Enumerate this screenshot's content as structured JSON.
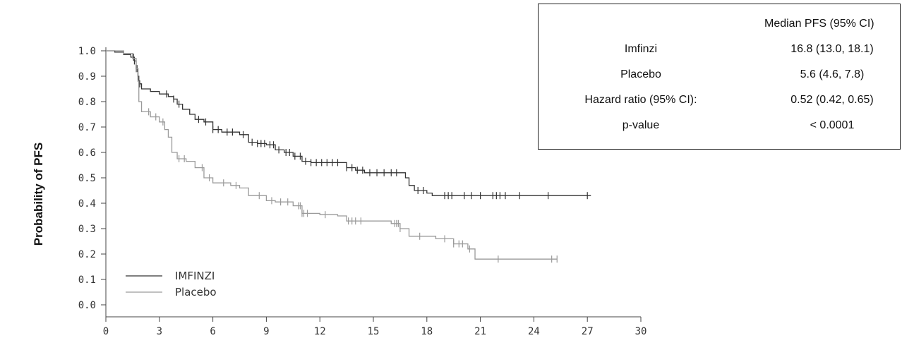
{
  "chart_data": {
    "type": "line",
    "subtype": "kaplan-meier",
    "xlabel": "",
    "ylabel": "Probability of PFS",
    "xlim": [
      0,
      30
    ],
    "ylim": [
      0,
      1
    ],
    "xticks": [
      "0",
      "3",
      "6",
      "9",
      "12",
      "15",
      "18",
      "21",
      "24",
      "27",
      "30"
    ],
    "yticks": [
      "0.0",
      "0.1",
      "0.2",
      "0.3",
      "0.4",
      "0.5",
      "0.6",
      "0.7",
      "0.8",
      "0.9",
      "1.0"
    ],
    "grid": false,
    "legend_position": "bottom-left",
    "series": [
      {
        "name": "IMFINZI",
        "color": "#333333",
        "points": [
          [
            0,
            1.0
          ],
          [
            0.5,
            0.995
          ],
          [
            1.0,
            0.985
          ],
          [
            1.4,
            0.975
          ],
          [
            1.6,
            0.96
          ],
          [
            1.7,
            0.93
          ],
          [
            1.8,
            0.9
          ],
          [
            1.85,
            0.87
          ],
          [
            2.0,
            0.85
          ],
          [
            2.5,
            0.84
          ],
          [
            3.0,
            0.83
          ],
          [
            3.5,
            0.82
          ],
          [
            3.8,
            0.81
          ],
          [
            4.0,
            0.79
          ],
          [
            4.3,
            0.77
          ],
          [
            4.7,
            0.75
          ],
          [
            5.0,
            0.73
          ],
          [
            5.5,
            0.72
          ],
          [
            6.0,
            0.69
          ],
          [
            6.5,
            0.68
          ],
          [
            7.0,
            0.68
          ],
          [
            7.5,
            0.67
          ],
          [
            8.0,
            0.64
          ],
          [
            8.5,
            0.635
          ],
          [
            9.0,
            0.63
          ],
          [
            9.5,
            0.61
          ],
          [
            10.0,
            0.6
          ],
          [
            10.5,
            0.585
          ],
          [
            11.0,
            0.565
          ],
          [
            11.5,
            0.56
          ],
          [
            12.0,
            0.56
          ],
          [
            13.0,
            0.56
          ],
          [
            13.5,
            0.54
          ],
          [
            14.0,
            0.53
          ],
          [
            14.5,
            0.52
          ],
          [
            15.5,
            0.52
          ],
          [
            16.5,
            0.52
          ],
          [
            16.8,
            0.5
          ],
          [
            17.0,
            0.47
          ],
          [
            17.3,
            0.45
          ],
          [
            18.0,
            0.44
          ],
          [
            18.3,
            0.43
          ],
          [
            20.0,
            0.43
          ],
          [
            22.0,
            0.43
          ],
          [
            25.0,
            0.43
          ],
          [
            27.2,
            0.43
          ]
        ],
        "censor_x": [
          1.55,
          1.6,
          1.7,
          1.75,
          1.8,
          1.85,
          1.9,
          3.4,
          3.8,
          4.1,
          5.2,
          5.6,
          6.0,
          6.3,
          6.8,
          7.1,
          7.7,
          8.2,
          8.5,
          8.7,
          8.9,
          9.2,
          9.4,
          9.7,
          10.1,
          10.3,
          10.6,
          10.9,
          11.2,
          11.5,
          11.8,
          12.1,
          12.4,
          12.7,
          13.0,
          13.5,
          13.8,
          14.1,
          14.4,
          14.8,
          15.2,
          15.6,
          16.0,
          16.3,
          17.5,
          17.8,
          19.0,
          19.2,
          19.4,
          20.1,
          20.5,
          21.0,
          21.7,
          21.9,
          22.1,
          22.4,
          23.2,
          24.8,
          27.0
        ]
      },
      {
        "name": "Placebo",
        "color": "#9a9a9a",
        "points": [
          [
            0,
            1.0
          ],
          [
            1.0,
            0.99
          ],
          [
            1.5,
            0.97
          ],
          [
            1.7,
            0.93
          ],
          [
            1.8,
            0.88
          ],
          [
            1.85,
            0.8
          ],
          [
            2.0,
            0.76
          ],
          [
            2.5,
            0.74
          ],
          [
            3.0,
            0.72
          ],
          [
            3.3,
            0.69
          ],
          [
            3.5,
            0.66
          ],
          [
            3.7,
            0.6
          ],
          [
            4.0,
            0.575
          ],
          [
            4.5,
            0.565
          ],
          [
            5.0,
            0.54
          ],
          [
            5.5,
            0.5
          ],
          [
            6.0,
            0.48
          ],
          [
            7.0,
            0.47
          ],
          [
            7.5,
            0.46
          ],
          [
            8.0,
            0.43
          ],
          [
            9.0,
            0.41
          ],
          [
            9.5,
            0.405
          ],
          [
            10.5,
            0.39
          ],
          [
            11.0,
            0.36
          ],
          [
            12.0,
            0.355
          ],
          [
            13.0,
            0.35
          ],
          [
            13.5,
            0.33
          ],
          [
            16.0,
            0.32
          ],
          [
            16.5,
            0.3
          ],
          [
            17.0,
            0.27
          ],
          [
            18.5,
            0.26
          ],
          [
            19.5,
            0.24
          ],
          [
            20.3,
            0.22
          ],
          [
            20.7,
            0.18
          ],
          [
            22.0,
            0.18
          ],
          [
            25.3,
            0.18
          ]
        ],
        "censor_x": [
          1.7,
          2.4,
          2.8,
          3.2,
          4.1,
          4.4,
          5.4,
          5.8,
          6.6,
          7.3,
          8.6,
          9.3,
          9.8,
          10.2,
          10.8,
          10.9,
          11.0,
          11.1,
          11.3,
          12.3,
          13.6,
          13.8,
          14.0,
          14.3,
          16.2,
          16.3,
          16.4,
          16.5,
          17.6,
          19.0,
          19.5,
          19.8,
          20.0,
          20.4,
          22.0,
          25.0,
          25.3
        ]
      }
    ]
  },
  "legend": {
    "items": [
      {
        "label": "IMFINZI",
        "color": "#333333"
      },
      {
        "label": "Placebo",
        "color": "#9a9a9a"
      }
    ]
  },
  "summary_table": {
    "header": [
      "",
      "Median PFS (95% CI)"
    ],
    "rows": [
      {
        "label": "Imfinzi",
        "value": "16.8 (13.0, 18.1)"
      },
      {
        "label": "Placebo",
        "value": "5.6 (4.6, 7.8)"
      },
      {
        "label": "Hazard ratio (95% CI):",
        "value": "0.52 (0.42, 0.65)"
      },
      {
        "label": "p-value",
        "value": "< 0.0001"
      }
    ]
  }
}
